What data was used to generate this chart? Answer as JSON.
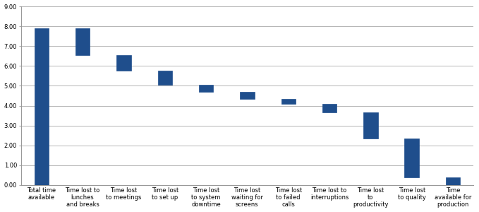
{
  "categories": [
    "Total time\navailable",
    "Time lost to\nlunches\nand breaks",
    "Time lost\nto meetings",
    "Time lost\nto set up",
    "Time lost\nto system\ndowntime",
    "Time lost\nwaiting for\nscreens",
    "Time lost\nto failed\ncalls",
    "Time lost to\ninterruptions",
    "Time lost\nto\nproductivity",
    "Time lost\nto quality",
    "Time\navailable for\nproduction"
  ],
  "bar_bottoms": [
    0.0,
    6.55,
    5.75,
    5.05,
    4.7,
    4.35,
    4.1,
    3.65,
    2.35,
    0.4,
    0.0
  ],
  "bar_tops": [
    7.9,
    7.9,
    6.55,
    5.75,
    5.05,
    4.7,
    4.35,
    4.1,
    3.65,
    2.35,
    0.4
  ],
  "bar_color": "#1F4E8C",
  "ylim": [
    0.0,
    9.0
  ],
  "yticks": [
    0.0,
    1.0,
    2.0,
    3.0,
    4.0,
    5.0,
    6.0,
    7.0,
    8.0,
    9.0
  ],
  "grid_color": "#AAAAAA",
  "bg_color": "#FFFFFF",
  "tick_label_fontsize": 6.0,
  "spine_color": "#999999",
  "bar_width": 0.35
}
